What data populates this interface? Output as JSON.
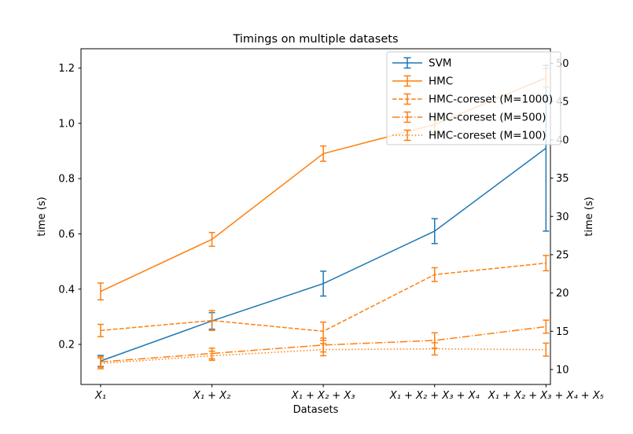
{
  "figure": {
    "background": "#ffffff"
  },
  "chart_data": {
    "type": "line",
    "title": "Timings on multiple datasets",
    "xlabel": "Datasets",
    "categories": [
      "X₁",
      "X₁ + X₂",
      "X₁ + X₂ + X₃",
      "X₁ + X₂ + X₃ + X₄",
      "X₁ + X₂ + X₃ + X₄ + X₅"
    ],
    "axes": {
      "x": {
        "range": [
          -0.176,
          4.04
        ],
        "tick_positions": [
          0,
          1,
          2,
          3,
          4
        ]
      },
      "left": {
        "label": "time (s)",
        "color": "#1f77b4",
        "ticks": [
          0.2,
          0.4,
          0.6,
          0.8,
          1.0,
          1.2
        ],
        "range": [
          0.055,
          1.27
        ],
        "tick_format": "decimal1"
      },
      "right": {
        "label": "time (s)",
        "color": "#ff7f0e",
        "ticks": [
          10,
          15,
          20,
          25,
          30,
          35,
          40,
          45,
          50
        ],
        "range": [
          8.05,
          51.9
        ],
        "tick_format": "integer"
      }
    },
    "series": [
      {
        "name": "SVM",
        "axis": "left",
        "color": "#1f77b4",
        "linestyle": "solid",
        "values": [
          0.14,
          0.285,
          0.42,
          0.61,
          0.91
        ],
        "errors": [
          0.02,
          0.03,
          0.045,
          0.045,
          0.3
        ]
      },
      {
        "name": "HMC",
        "axis": "right",
        "color": "#ff7f0e",
        "linestyle": "solid",
        "values": [
          20.2,
          27.0,
          38.2,
          42.0,
          48.1
        ],
        "errors": [
          1.1,
          0.9,
          1.0,
          1.0,
          1.2
        ]
      },
      {
        "name": "HMC-coreset (M=1000)",
        "axis": "right",
        "color": "#ff7f0e",
        "linestyle": "dashed",
        "values": [
          15.1,
          16.4,
          15.0,
          22.4,
          23.9
        ],
        "errors": [
          0.8,
          1.3,
          1.2,
          0.9,
          1.0
        ]
      },
      {
        "name": "HMC-coreset (M=500)",
        "axis": "right",
        "color": "#ff7f0e",
        "linestyle": "dashdot",
        "values": [
          11.0,
          12.1,
          13.2,
          13.8,
          15.6
        ],
        "errors": [
          0.7,
          0.7,
          0.9,
          1.0,
          0.85
        ]
      },
      {
        "name": "HMC-coreset (M=100)",
        "axis": "right",
        "color": "#ff7f0e",
        "linestyle": "dotted",
        "values": [
          10.8,
          11.8,
          12.6,
          12.7,
          12.6
        ],
        "errors": [
          0.7,
          0.6,
          0.8,
          0.8,
          0.85
        ]
      }
    ],
    "legend": {
      "position": "upper right",
      "entries": [
        "SVM",
        "HMC",
        "HMC-coreset (M=1000)",
        "HMC-coreset (M=500)",
        "HMC-coreset (M=100)"
      ]
    }
  }
}
